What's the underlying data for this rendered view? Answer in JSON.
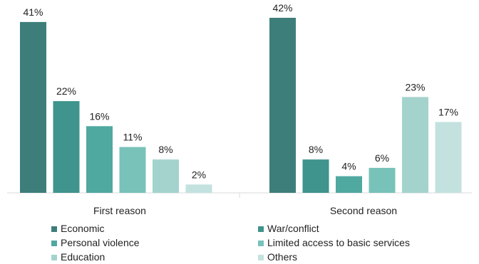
{
  "chart_data": {
    "type": "bar",
    "categories": [
      "First reason",
      "Second reason"
    ],
    "series": [
      {
        "name": "Economic",
        "color": "#3e7e7a",
        "values": [
          41,
          42
        ],
        "labels": [
          "41%",
          "42%"
        ]
      },
      {
        "name": "War/conflict",
        "color": "#3f948d",
        "values": [
          22,
          8
        ],
        "labels": [
          "22%",
          "8%"
        ]
      },
      {
        "name": "Personal violence",
        "color": "#4fa9a1",
        "values": [
          16,
          4
        ],
        "labels": [
          "16%",
          "4%"
        ]
      },
      {
        "name": "Limited access to basic services",
        "color": "#78c2ba",
        "values": [
          11,
          6
        ],
        "labels": [
          "11%",
          "6%"
        ]
      },
      {
        "name": "Education",
        "color": "#a4d3cd",
        "values": [
          8,
          23
        ],
        "labels": [
          "8%",
          "23%"
        ]
      },
      {
        "name": "Others",
        "color": "#c3e2df",
        "values": [
          2,
          17
        ],
        "labels": [
          "2%",
          "17%"
        ]
      }
    ],
    "ylim": [
      0,
      42
    ],
    "grid": false,
    "legend_position": "bottom"
  }
}
